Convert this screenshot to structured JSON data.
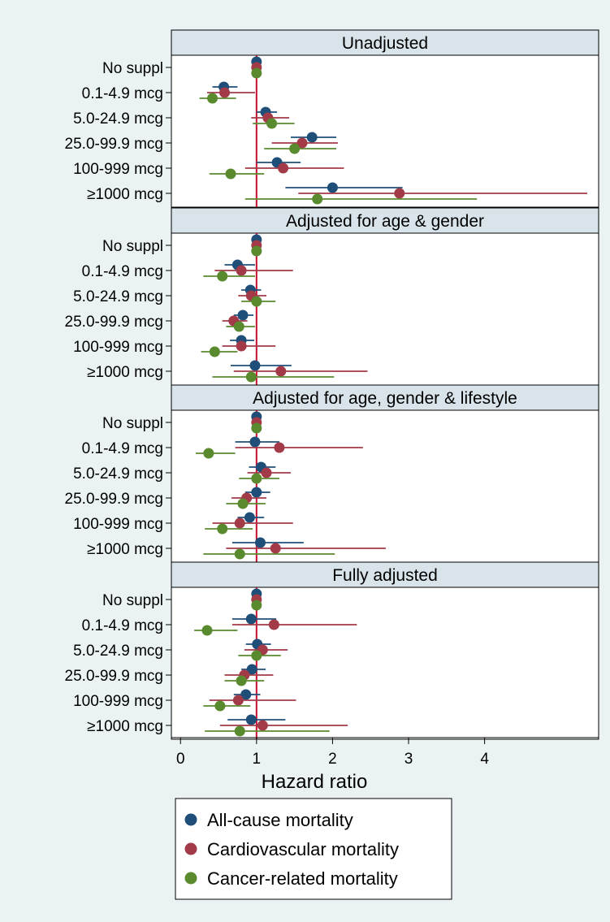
{
  "chart_data": {
    "type": "scatter",
    "subtype": "forest-plot",
    "xlabel": "Hazard ratio",
    "x_ticks": [
      0,
      1,
      2,
      3,
      4
    ],
    "xlim": [
      -0.12,
      5.5
    ],
    "reference_line": 1,
    "categories": [
      "No suppl",
      "0.1-4.9 mcg",
      "5.0-24.9 mcg",
      "25.0-99.9 mcg",
      "100-999 mcg",
      "≥1000 mcg"
    ],
    "legend_position": "bottom",
    "series": [
      {
        "name": "All-cause mortality",
        "color": "#1f4e79"
      },
      {
        "name": "Cardiovascular mortality",
        "color": "#a33a48"
      },
      {
        "name": "Cancer-related mortality",
        "color": "#5a8a2e"
      }
    ],
    "panels": [
      {
        "title": "Unadjusted",
        "estimates": [
          [
            [
              1,
              1,
              1
            ],
            [
              0.57,
              0.42,
              0.75
            ],
            [
              1.12,
              1.0,
              1.27
            ],
            [
              1.73,
              1.45,
              2.05
            ],
            [
              1.27,
              1.0,
              1.58
            ],
            [
              2.0,
              1.38,
              2.92
            ]
          ],
          [
            [
              1,
              1,
              1
            ],
            [
              0.58,
              0.35,
              0.98
            ],
            [
              1.15,
              0.93,
              1.43
            ],
            [
              1.6,
              1.2,
              2.07
            ],
            [
              1.35,
              0.85,
              2.15
            ],
            [
              2.88,
              1.55,
              5.35
            ]
          ],
          [
            [
              1,
              1,
              1
            ],
            [
              0.42,
              0.25,
              0.73
            ],
            [
              1.2,
              0.95,
              1.5
            ],
            [
              1.5,
              1.1,
              2.05
            ],
            [
              0.66,
              0.38,
              1.1
            ],
            [
              1.8,
              0.85,
              3.9
            ]
          ]
        ]
      },
      {
        "title": "Adjusted for age & gender",
        "estimates": [
          [
            [
              1,
              1,
              1
            ],
            [
              0.75,
              0.58,
              0.98
            ],
            [
              0.92,
              0.8,
              1.06
            ],
            [
              0.82,
              0.7,
              0.96
            ],
            [
              0.8,
              0.65,
              0.97
            ],
            [
              0.98,
              0.66,
              1.46
            ]
          ],
          [
            [
              1,
              1,
              1
            ],
            [
              0.8,
              0.45,
              1.48
            ],
            [
              0.93,
              0.76,
              1.13
            ],
            [
              0.7,
              0.55,
              0.88
            ],
            [
              0.8,
              0.55,
              1.25
            ],
            [
              1.32,
              0.7,
              2.46
            ]
          ],
          [
            [
              1,
              1,
              1
            ],
            [
              0.55,
              0.3,
              0.98
            ],
            [
              1.0,
              0.8,
              1.25
            ],
            [
              0.77,
              0.6,
              0.98
            ],
            [
              0.45,
              0.27,
              0.75
            ],
            [
              0.93,
              0.42,
              2.02
            ]
          ]
        ]
      },
      {
        "title": "Adjusted for age, gender & lifestyle",
        "estimates": [
          [
            [
              1,
              1,
              1
            ],
            [
              0.98,
              0.72,
              1.3
            ],
            [
              1.06,
              0.9,
              1.25
            ],
            [
              1.0,
              0.85,
              1.18
            ],
            [
              0.91,
              0.75,
              1.1
            ],
            [
              1.05,
              0.68,
              1.62
            ]
          ],
          [
            [
              1,
              1,
              1
            ],
            [
              1.3,
              0.72,
              2.4
            ],
            [
              1.13,
              0.88,
              1.45
            ],
            [
              0.87,
              0.67,
              1.13
            ],
            [
              0.78,
              0.42,
              1.48
            ],
            [
              1.25,
              0.6,
              2.7
            ]
          ],
          [
            [
              1,
              1,
              1
            ],
            [
              0.37,
              0.2,
              0.72
            ],
            [
              1.0,
              0.77,
              1.3
            ],
            [
              0.82,
              0.6,
              1.12
            ],
            [
              0.55,
              0.32,
              0.95
            ],
            [
              0.78,
              0.3,
              2.03
            ]
          ]
        ]
      },
      {
        "title": "Fully adjusted",
        "estimates": [
          [
            [
              1,
              1,
              1
            ],
            [
              0.93,
              0.68,
              1.26
            ],
            [
              1.01,
              0.86,
              1.19
            ],
            [
              0.94,
              0.8,
              1.12
            ],
            [
              0.86,
              0.7,
              1.05
            ],
            [
              0.93,
              0.62,
              1.38
            ]
          ],
          [
            [
              1,
              1,
              1
            ],
            [
              1.23,
              0.68,
              2.32
            ],
            [
              1.08,
              0.84,
              1.41
            ],
            [
              0.84,
              0.58,
              1.22
            ],
            [
              0.76,
              0.38,
              1.52
            ],
            [
              1.08,
              0.52,
              2.2
            ]
          ],
          [
            [
              1,
              1,
              1
            ],
            [
              0.35,
              0.18,
              0.75
            ],
            [
              1.0,
              0.76,
              1.32
            ],
            [
              0.8,
              0.58,
              1.1
            ],
            [
              0.52,
              0.3,
              0.92
            ],
            [
              0.78,
              0.32,
              1.96
            ]
          ]
        ]
      }
    ]
  }
}
